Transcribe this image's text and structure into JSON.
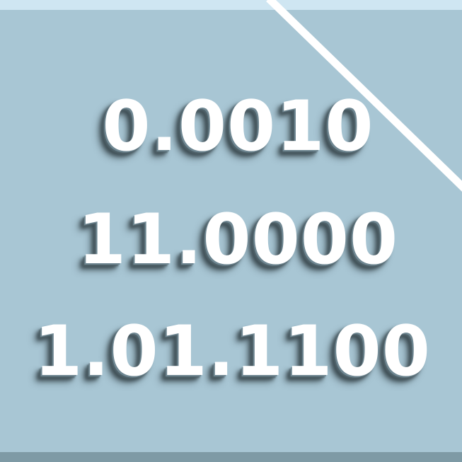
{
  "numbers": {
    "line1": "0.0010",
    "line2": "11.0000",
    "line3": "1.01.1100"
  },
  "colors": {
    "background": "#a8c6d4",
    "top_strip": "#cfe6f2",
    "bottom_strip": "#7e9aa5",
    "text": "#ffffff",
    "diagonal_line": "#ffffff"
  }
}
